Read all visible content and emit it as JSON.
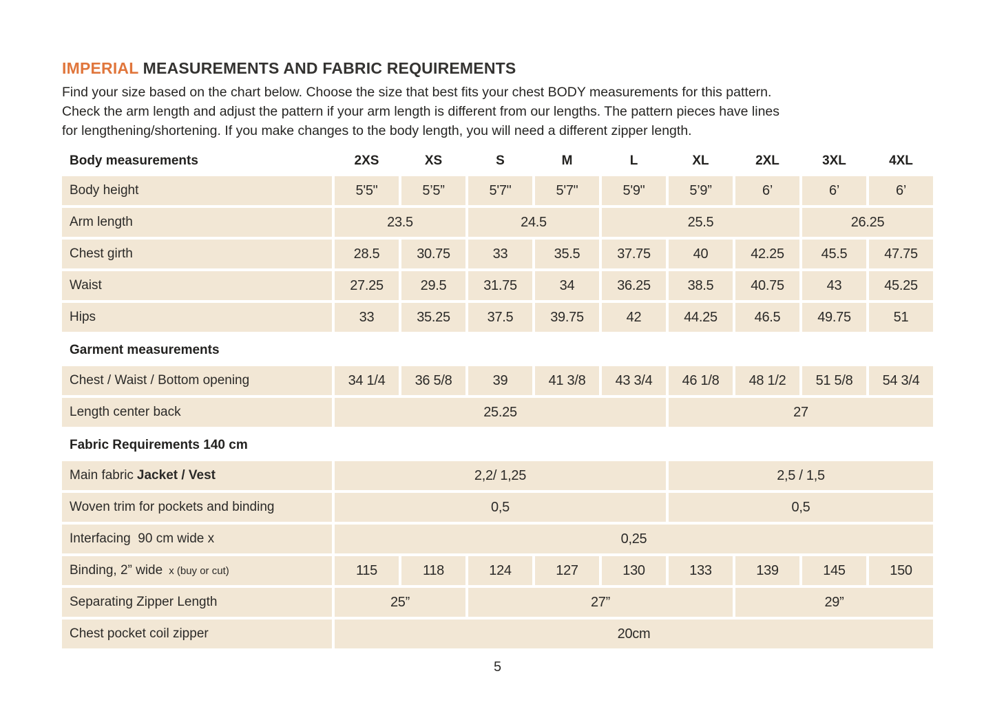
{
  "header": {
    "title_highlight": "IMPERIAL",
    "title_rest": " MEASUREMENTS AND FABRIC REQUIREMENTS",
    "intro_lines": [
      "Find your size based on the chart below. Choose the size that best fits your chest BODY measurements for this pattern.",
      "Check the arm length and adjust the pattern if your arm length is different from our lengths. The pattern pieces have lines",
      "for lengthening/shortening. If you make changes to the body length, you will need a different zipper length."
    ]
  },
  "colors": {
    "accent_orange": "#e0763c",
    "cell_background": "#f2e7d5",
    "text": "#2b2a28"
  },
  "table": {
    "sizes_header": {
      "label": "Body measurements",
      "sizes": [
        "2XS",
        "XS",
        "S",
        "M",
        "L",
        "XL",
        "2XL",
        "3XL",
        "4XL"
      ]
    },
    "body_height": {
      "label": "Body height",
      "values": [
        "5'5\"",
        "5’5”",
        "5'7\"",
        "5'7\"",
        "5'9\"",
        "5’9”",
        "6’",
        "6’",
        "6’"
      ]
    },
    "arm_length": {
      "label": "Arm length",
      "values": [
        "23.5",
        "24.5",
        "25.5",
        "26.25"
      ]
    },
    "chest_girth": {
      "label": "Chest girth",
      "values": [
        "28.5",
        "30.75",
        "33",
        "35.5",
        "37.75",
        "40",
        "42.25",
        "45.5",
        "47.75"
      ]
    },
    "waist": {
      "label": "Waist",
      "values": [
        "27.25",
        "29.5",
        "31.75",
        "34",
        "36.25",
        "38.5",
        "40.75",
        "43",
        "45.25"
      ]
    },
    "hips": {
      "label": "Hips",
      "values": [
        "33",
        "35.25",
        "37.5",
        "39.75",
        "42",
        "44.25",
        "46.5",
        "49.75",
        "51"
      ]
    },
    "garment_section": {
      "label": "Garment measurements"
    },
    "chest_waist_bottom": {
      "label": "Chest / Waist / Bottom opening",
      "values": [
        "34 1/4",
        "36 5/8",
        "39",
        "41 3/8",
        "43 3/4",
        "46 1/8",
        "48 1/2",
        "51 5/8",
        "54 3/4"
      ]
    },
    "length_center_back": {
      "label": "Length center back",
      "values": [
        "25.25",
        "27"
      ]
    },
    "fabric_section": {
      "label": "Fabric Requirements 140 cm"
    },
    "main_fabric": {
      "label": "Main fabric",
      "label_bold": "Jacket / Vest",
      "values": [
        "2,2/ 1,25",
        "2,5 / 1,5"
      ]
    },
    "woven_trim": {
      "label": "Woven trim for pockets and binding",
      "values": [
        "0,5",
        "0,5"
      ]
    },
    "interfacing": {
      "label": "Interfacing  90 cm wide x",
      "values": [
        "0,25"
      ]
    },
    "binding": {
      "label": "Binding, 2” wide",
      "label_note": "x (buy or cut)",
      "values": [
        "115",
        "118",
        "124",
        "127",
        "130",
        "133",
        "139",
        "145",
        "150"
      ]
    },
    "separating_zipper": {
      "label": "Separating Zipper Length",
      "values": [
        "25”",
        "27”",
        "29”"
      ]
    },
    "chest_pocket_zipper": {
      "label": "Chest pocket coil zipper",
      "values": [
        "20cm"
      ]
    }
  },
  "footer": {
    "page_number": "5"
  }
}
